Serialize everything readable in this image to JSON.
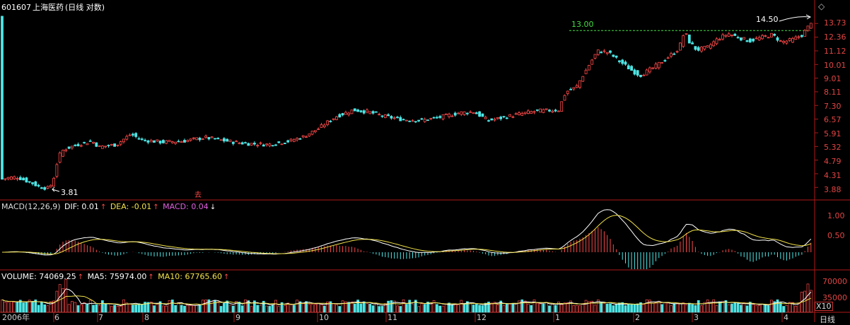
{
  "header": {
    "code": "601607",
    "name": "上海医药",
    "mode": "(日线 对数)"
  },
  "colors": {
    "up": "#ff4a4a",
    "down": "#4ee6e6",
    "axis": "#b01818",
    "grid": "#3a0a0a",
    "text": "#e24444",
    "dif": "#ffffff",
    "dea": "#f2e24a",
    "macd": "#e060e0"
  },
  "price_axis_labels": [
    "13.73",
    "12.36",
    "11.12",
    "10.01",
    "9.01",
    "8.11",
    "7.30",
    "6.57",
    "5.91",
    "5.32",
    "4.79",
    "4.31",
    "3.88"
  ],
  "annotations": {
    "high_label": "14.50",
    "low_label": "3.81",
    "target_line_label": "13.00",
    "marker": "去"
  },
  "macd": {
    "name": "MACD(12,26,9)",
    "dif_label": "DIF: 0.01",
    "dea_label": "DEA: -0.01",
    "macd_label": "MACD: 0.04",
    "axis_labels": [
      "1.00",
      "0.50"
    ]
  },
  "volume": {
    "vol_label": "VOLUME: 74069.25",
    "ma5_label": "MA5: 75974.00",
    "ma10_label": "MA10: 67765.60",
    "axis_labels": [
      "70000",
      "35000"
    ],
    "unit": "X10"
  },
  "x_labels": [
    {
      "text": "2006年",
      "key": "x0"
    },
    {
      "text": "6",
      "key": "x1"
    },
    {
      "text": "7",
      "key": "x2"
    },
    {
      "text": "8",
      "key": "x3"
    },
    {
      "text": "9",
      "key": "x4"
    },
    {
      "text": "10",
      "key": "x5"
    },
    {
      "text": "11",
      "key": "x6"
    },
    {
      "text": "12",
      "key": "x7"
    },
    {
      "text": "1",
      "key": "x8"
    },
    {
      "text": "2",
      "key": "x9"
    },
    {
      "text": "3",
      "key": "x10"
    },
    {
      "text": "4",
      "key": "x11"
    }
  ],
  "period_label": "日线",
  "chart_data": {
    "type": "candlestick",
    "title": "601607 上海医药(日线 对数)",
    "scale": "log",
    "y_range": [
      3.6,
      14.6
    ],
    "price_path": [
      [
        0,
        4.12
      ],
      [
        12,
        4.18
      ],
      [
        25,
        4.2
      ],
      [
        35,
        4.1
      ],
      [
        45,
        4.02
      ],
      [
        55,
        3.9
      ],
      [
        70,
        3.85
      ],
      [
        78,
        4.3
      ],
      [
        82,
        4.9
      ],
      [
        90,
        5.2
      ],
      [
        110,
        5.4
      ],
      [
        130,
        5.55
      ],
      [
        140,
        5.3
      ],
      [
        165,
        5.4
      ],
      [
        185,
        5.85
      ],
      [
        200,
        5.6
      ],
      [
        230,
        5.5
      ],
      [
        260,
        5.55
      ],
      [
        290,
        5.7
      ],
      [
        320,
        5.55
      ],
      [
        345,
        5.45
      ],
      [
        380,
        5.4
      ],
      [
        410,
        5.55
      ],
      [
        430,
        5.75
      ],
      [
        450,
        6.1
      ],
      [
        475,
        6.7
      ],
      [
        500,
        7.05
      ],
      [
        520,
        6.95
      ],
      [
        545,
        6.7
      ],
      [
        570,
        6.55
      ],
      [
        595,
        6.5
      ],
      [
        620,
        6.65
      ],
      [
        650,
        6.9
      ],
      [
        670,
        6.95
      ],
      [
        690,
        6.5
      ],
      [
        705,
        6.6
      ],
      [
        730,
        6.8
      ],
      [
        760,
        7.0
      ],
      [
        790,
        7.05
      ],
      [
        800,
        8.1
      ],
      [
        815,
        8.4
      ],
      [
        830,
        9.7
      ],
      [
        845,
        11.1
      ],
      [
        860,
        11.0
      ],
      [
        875,
        10.3
      ],
      [
        895,
        9.5
      ],
      [
        905,
        9.2
      ],
      [
        925,
        9.8
      ],
      [
        945,
        10.6
      ],
      [
        960,
        11.3
      ],
      [
        968,
        12.9
      ],
      [
        975,
        11.9
      ],
      [
        985,
        11.2
      ],
      [
        1000,
        11.4
      ],
      [
        1015,
        12.2
      ],
      [
        1030,
        12.7
      ],
      [
        1050,
        12.2
      ],
      [
        1060,
        12.0
      ],
      [
        1075,
        12.3
      ],
      [
        1092,
        12.6
      ],
      [
        1105,
        11.9
      ],
      [
        1120,
        12.1
      ],
      [
        1135,
        12.6
      ],
      [
        1145,
        13.6
      ],
      [
        1150,
        14.5
      ]
    ],
    "high": 14.5,
    "low": 3.81,
    "reference_line": 13.0
  }
}
